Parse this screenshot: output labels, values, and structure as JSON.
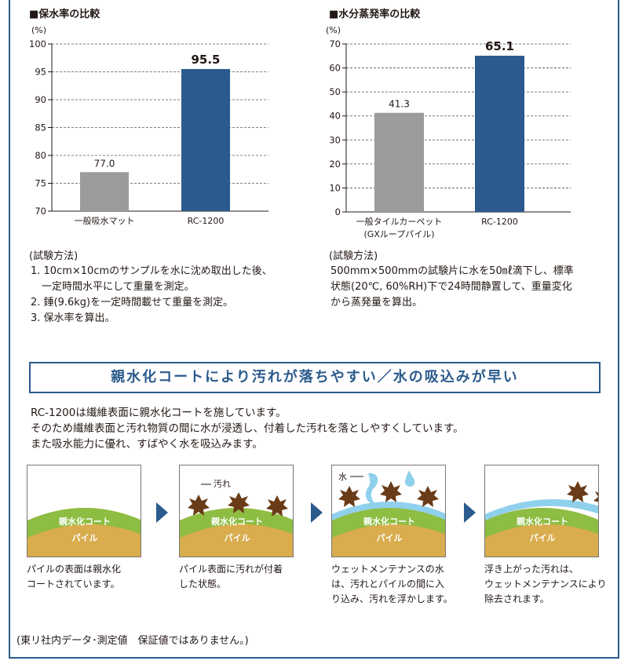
{
  "charts": {
    "left": {
      "title": "■保水率の比較"
    },
    "right": {
      "title": "■水分蒸発率の比較"
    }
  },
  "chart_data": [
    {
      "type": "bar",
      "title": "■保水率の比較",
      "ylabel": "(%)",
      "ylim": [
        70,
        100
      ],
      "yticks": [
        70,
        75,
        80,
        85,
        90,
        95,
        100
      ],
      "categories": [
        [
          "一般吸水マット"
        ],
        [
          "RC-1200"
        ]
      ],
      "values": [
        77.0,
        95.5
      ],
      "value_labels": [
        "77.0",
        "95.5"
      ],
      "colors": [
        "#9b9b9d",
        "#2c5a8e"
      ],
      "grid": true
    },
    {
      "type": "bar",
      "title": "■水分蒸発率の比較",
      "ylabel": "(%)",
      "ylim": [
        0,
        70
      ],
      "yticks": [
        0,
        10,
        20,
        30,
        40,
        50,
        60,
        70
      ],
      "categories": [
        [
          "一般タイルカーペット",
          "(GXループパイル)"
        ],
        [
          "RC-1200"
        ]
      ],
      "values": [
        41.3,
        65.1
      ],
      "value_labels": [
        "41.3",
        "65.1"
      ],
      "colors": [
        "#9b9b9d",
        "#2c5a8e"
      ],
      "grid": true
    }
  ],
  "methods": {
    "left": {
      "heading": "(試験方法)",
      "lines": [
        "1. 10cm×10cmのサンプルを水に沈め取出した後、",
        "一定時間水平にして重量を測定。",
        "2. 錘(9.6kg)を一定時間載せて重量を測定。",
        "3. 保水率を算出。"
      ]
    },
    "right": {
      "heading": "(試験方法)",
      "lines": [
        "500mm×500mmの試験片に水を50㎖滴下し、標準",
        "状態(20℃, 60%RH)下で24時間静置して、重量変化",
        "から蒸発量を算出。"
      ]
    }
  },
  "banner": "親水化コートにより汚れが落ちやすい／水の吸込みが早い",
  "intro": [
    "RC-1200は繊維表面に親水化コートを施しています。",
    "そのため繊維表面と汚れ物質の間に水が浸透し、付着した汚れを落としやすくしています。",
    "また吸水能力に優れ、すばやく水を吸込みます。"
  ],
  "diagram": {
    "layer_coat": "親水化コート",
    "layer_pile": "パイル",
    "label_dirt": "汚れ",
    "label_water": "水",
    "colors": {
      "coat": "#8dbd42",
      "pile": "#d9ac4e",
      "dirt": "#6a3b17",
      "water": "#8fd0ec",
      "accent": "#2b5a8c"
    },
    "captions": [
      [
        "パイルの表面は親水化",
        "コートされています。"
      ],
      [
        "パイル表面に汚れが付着",
        "した状態。"
      ],
      [
        "ウェットメンテナンスの水",
        "は、汚れとパイルの間に入",
        "り込み、汚れを浮かします。"
      ],
      [
        "浮き上がった汚れは、",
        "ウェットメンテナンスにより",
        "除去されます。"
      ]
    ]
  },
  "footer": "(東リ社内データ･測定値　保証値ではありません。)"
}
